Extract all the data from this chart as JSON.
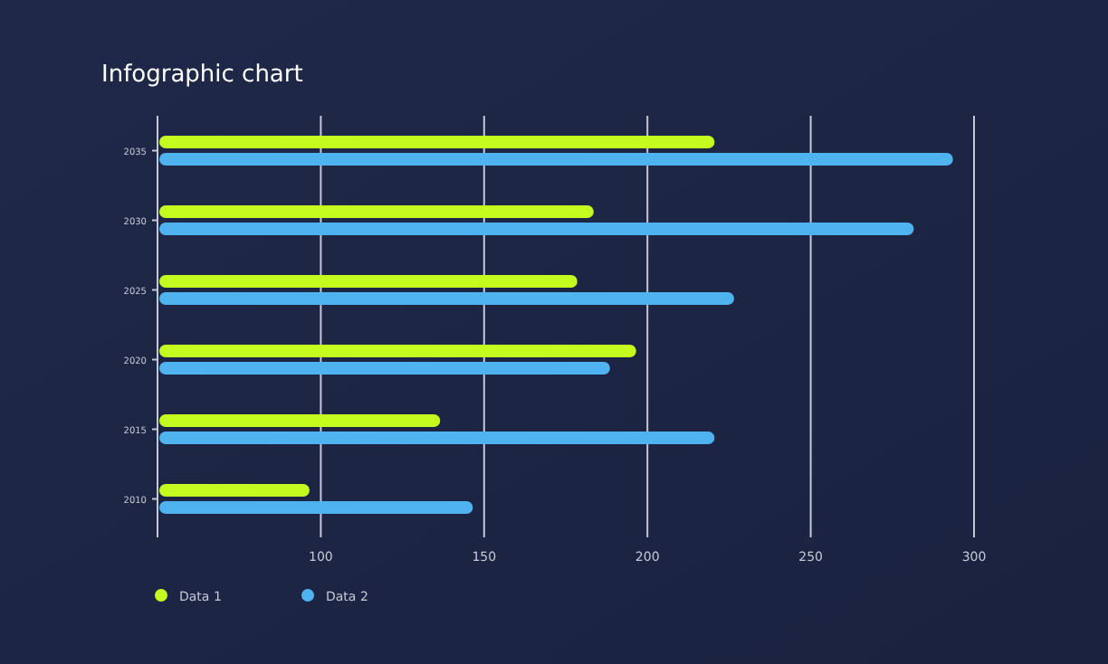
{
  "chart_data": {
    "type": "bar",
    "orientation": "horizontal",
    "title": "Infographic chart",
    "categories": [
      "2035",
      "2030",
      "2025",
      "2020",
      "2015",
      "2010"
    ],
    "series": [
      {
        "name": "Data 1",
        "color": "#c6fb1f",
        "values": [
          220,
          183,
          178,
          196,
          136,
          96
        ]
      },
      {
        "name": "Data 2",
        "color": "#4fb3ef",
        "values": [
          293,
          281,
          226,
          188,
          220,
          146
        ]
      }
    ],
    "xlim": [
      50,
      300
    ],
    "xticks": [
      {
        "value": 50,
        "label": null
      },
      100,
      150,
      200,
      250,
      300
    ],
    "grid": "x",
    "legend": "bottom left"
  }
}
